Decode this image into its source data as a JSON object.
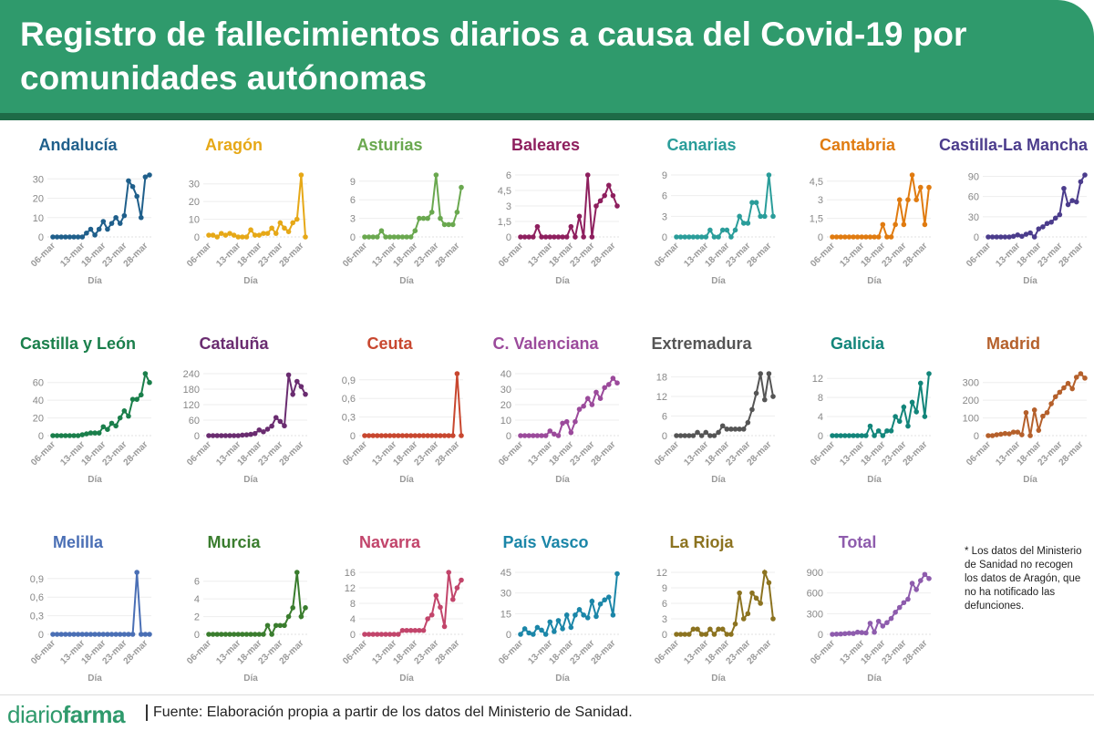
{
  "header": {
    "title": "Registro de fallecimientos diarios a causa del Covid-19 por comunidades autónomas"
  },
  "note": "* Los datos del Ministerio de Sanidad no recogen los datos de Aragón, que no ha notificado las defunciones.",
  "footer": {
    "logo_light": "diario",
    "logo_bold": "farma",
    "source": "Fuente: Elaboración propia a partir de los datos del Ministerio de Sanidad."
  },
  "chart_data": {
    "type": "line",
    "xlabel": "Día",
    "x": [
      "06-mar",
      "07-mar",
      "08-mar",
      "09-mar",
      "10-mar",
      "11-mar",
      "12-mar",
      "13-mar",
      "14-mar",
      "15-mar",
      "16-mar",
      "17-mar",
      "18-mar",
      "19-mar",
      "20-mar",
      "21-mar",
      "22-mar",
      "23-mar",
      "24-mar",
      "25-mar",
      "26-mar",
      "27-mar",
      "28-mar",
      "29-mar"
    ],
    "xticks": [
      "06-mar",
      "13-mar",
      "18-mar",
      "23-mar",
      "28-mar"
    ],
    "panels": [
      {
        "name": "Andalucía",
        "color": "#1f5f8b",
        "yticks": [
          "0",
          "10",
          "20",
          "30"
        ],
        "tickvals": [
          0,
          10,
          20,
          30
        ],
        "values": [
          0,
          0,
          0,
          0,
          0,
          0,
          0,
          0,
          2,
          4,
          1,
          4,
          8,
          4,
          7,
          10,
          7,
          11,
          29,
          26,
          21,
          10,
          31,
          32
        ]
      },
      {
        "name": "Aragón",
        "color": "#e6a817",
        "yticks": [
          "0",
          "10",
          "20",
          "30"
        ],
        "tickvals": [
          0,
          10,
          20,
          30
        ],
        "values": [
          1,
          1,
          0,
          2,
          1,
          2,
          1,
          0,
          0,
          0,
          4,
          1,
          1,
          2,
          2,
          5,
          2,
          8,
          5,
          3,
          8,
          10,
          35,
          0
        ]
      },
      {
        "name": "Asturias",
        "color": "#6aa84f",
        "yticks": [
          "0",
          "3",
          "6",
          "9"
        ],
        "tickvals": [
          0,
          3,
          6,
          9
        ],
        "values": [
          0,
          0,
          0,
          0,
          1,
          0,
          0,
          0,
          0,
          0,
          0,
          0,
          1,
          3,
          3,
          3,
          4,
          10,
          3,
          2,
          2,
          2,
          4,
          8
        ]
      },
      {
        "name": "Baleares",
        "color": "#8e1f5e",
        "yticks": [
          "0",
          "1,5",
          "3",
          "4,5",
          "6"
        ],
        "tickvals": [
          0,
          1.5,
          3,
          4.5,
          6
        ],
        "values": [
          0,
          0,
          0,
          0,
          1,
          0,
          0,
          0,
          0,
          0,
          0,
          0,
          1,
          0,
          2,
          0,
          6,
          0,
          3,
          3.5,
          4,
          5,
          4,
          3
        ]
      },
      {
        "name": "Canarias",
        "color": "#2a9d9a",
        "yticks": [
          "0",
          "3",
          "6",
          "9"
        ],
        "tickvals": [
          0,
          3,
          6,
          9
        ],
        "values": [
          0,
          0,
          0,
          0,
          0,
          0,
          0,
          0,
          1,
          0,
          0,
          1,
          1,
          0,
          1,
          3,
          2,
          2,
          5,
          5,
          3,
          3,
          9,
          3
        ]
      },
      {
        "name": "Cantabria",
        "color": "#e07b10",
        "yticks": [
          "0",
          "1,5",
          "3",
          "4,5"
        ],
        "tickvals": [
          0,
          1.5,
          3,
          4.5
        ],
        "values": [
          0,
          0,
          0,
          0,
          0,
          0,
          0,
          0,
          0,
          0,
          0,
          0,
          1,
          0,
          0,
          1,
          3,
          1,
          3,
          5,
          3,
          4,
          1,
          4
        ]
      },
      {
        "name": "Castilla-La Mancha",
        "color": "#4b3c8c",
        "yticks": [
          "0",
          "30",
          "60",
          "90"
        ],
        "tickvals": [
          0,
          30,
          60,
          90
        ],
        "values": [
          0,
          0,
          0,
          0,
          0,
          0,
          1,
          3,
          1,
          4,
          6,
          0,
          12,
          15,
          20,
          22,
          28,
          33,
          72,
          48,
          54,
          52,
          82,
          92
        ]
      },
      {
        "name": "Castilla y León",
        "color": "#1a7f4b",
        "yticks": [
          "0",
          "20",
          "40",
          "60"
        ],
        "tickvals": [
          0,
          20,
          40,
          60
        ],
        "values": [
          0,
          0,
          0,
          0,
          0,
          0,
          0,
          1,
          2,
          3,
          3,
          3,
          10,
          7,
          14,
          11,
          20,
          28,
          22,
          41,
          41,
          46,
          70,
          60
        ]
      },
      {
        "name": "Cataluña",
        "color": "#6a2c70",
        "yticks": [
          "0",
          "60",
          "120",
          "180",
          "240"
        ],
        "tickvals": [
          0,
          60,
          120,
          180,
          240
        ],
        "values": [
          0,
          0,
          0,
          0,
          0,
          0,
          0,
          0,
          2,
          3,
          5,
          8,
          22,
          15,
          25,
          37,
          70,
          55,
          38,
          235,
          160,
          210,
          190,
          160
        ]
      },
      {
        "name": "Ceuta",
        "color": "#c8472f",
        "yticks": [
          "0",
          "0,3",
          "0,6",
          "0,9"
        ],
        "tickvals": [
          0,
          0.3,
          0.6,
          0.9
        ],
        "values": [
          0,
          0,
          0,
          0,
          0,
          0,
          0,
          0,
          0,
          0,
          0,
          0,
          0,
          0,
          0,
          0,
          0,
          0,
          0,
          0,
          0,
          0,
          1,
          0
        ]
      },
      {
        "name": "C. Valenciana",
        "color": "#9b4a9b",
        "yticks": [
          "0",
          "10",
          "20",
          "30",
          "40"
        ],
        "tickvals": [
          0,
          10,
          20,
          30,
          40
        ],
        "values": [
          0,
          0,
          0,
          0,
          0,
          0,
          0,
          3,
          1,
          0,
          8,
          9,
          2,
          9,
          17,
          19,
          24,
          20,
          28,
          24,
          31,
          33,
          37,
          34
        ]
      },
      {
        "name": "Extremadura",
        "color": "#555555",
        "yticks": [
          "0",
          "6",
          "12",
          "18"
        ],
        "tickvals": [
          0,
          6,
          12,
          18
        ],
        "values": [
          0,
          0,
          0,
          0,
          0,
          1,
          0,
          1,
          0,
          0,
          1,
          3,
          2,
          2,
          2,
          2,
          2,
          4,
          8,
          13,
          19,
          11,
          19,
          12
        ]
      },
      {
        "name": "Galicia",
        "color": "#12857a",
        "yticks": [
          "0",
          "4",
          "8",
          "12"
        ],
        "tickvals": [
          0,
          4,
          8,
          12
        ],
        "values": [
          0,
          0,
          0,
          0,
          0,
          0,
          0,
          0,
          0,
          2,
          0,
          1,
          0,
          1,
          1,
          4,
          3,
          6,
          2,
          7,
          5,
          11,
          4,
          13
        ]
      },
      {
        "name": "Madrid",
        "color": "#b5602b",
        "yticks": [
          "0",
          "100",
          "200",
          "300"
        ],
        "tickvals": [
          0,
          100,
          200,
          300
        ],
        "values": [
          0,
          0,
          5,
          8,
          12,
          10,
          20,
          20,
          5,
          130,
          0,
          145,
          30,
          110,
          130,
          180,
          220,
          245,
          270,
          295,
          265,
          330,
          350,
          325
        ]
      },
      {
        "name": "Melilla",
        "color": "#4a6fb5",
        "yticks": [
          "0",
          "0,3",
          "0,6",
          "0,9"
        ],
        "tickvals": [
          0,
          0.3,
          0.6,
          0.9
        ],
        "values": [
          0,
          0,
          0,
          0,
          0,
          0,
          0,
          0,
          0,
          0,
          0,
          0,
          0,
          0,
          0,
          0,
          0,
          0,
          0,
          0,
          1,
          0,
          0,
          0
        ]
      },
      {
        "name": "Murcia",
        "color": "#3a7d2e",
        "yticks": [
          "0",
          "2",
          "4",
          "6"
        ],
        "tickvals": [
          0,
          2,
          4,
          6
        ],
        "values": [
          0,
          0,
          0,
          0,
          0,
          0,
          0,
          0,
          0,
          0,
          0,
          0,
          0,
          0,
          1,
          0,
          1,
          1,
          1,
          2,
          3,
          7,
          2,
          3
        ]
      },
      {
        "name": "Navarra",
        "color": "#c2456b",
        "yticks": [
          "0",
          "4",
          "8",
          "12",
          "16"
        ],
        "tickvals": [
          0,
          4,
          8,
          12,
          16
        ],
        "values": [
          0,
          0,
          0,
          0,
          0,
          0,
          0,
          0,
          0,
          1,
          1,
          1,
          1,
          1,
          1,
          4,
          5,
          10,
          7,
          2,
          16,
          9,
          12,
          14
        ]
      },
      {
        "name": "País Vasco",
        "color": "#1b86a8",
        "yticks": [
          "0",
          "15",
          "30",
          "45"
        ],
        "tickvals": [
          0,
          15,
          30,
          45
        ],
        "values": [
          0,
          4,
          1,
          0,
          5,
          3,
          0,
          9,
          2,
          10,
          4,
          14,
          5,
          14,
          18,
          14,
          12,
          24,
          13,
          22,
          25,
          27,
          14,
          44
        ]
      },
      {
        "name": "La Rioja",
        "color": "#8c7320",
        "yticks": [
          "0",
          "3",
          "6",
          "9",
          "12"
        ],
        "tickvals": [
          0,
          3,
          6,
          9,
          12
        ],
        "values": [
          0,
          0,
          0,
          0,
          1,
          1,
          0,
          0,
          1,
          0,
          1,
          1,
          0,
          0,
          2,
          8,
          3,
          4,
          8,
          7,
          6,
          12,
          10,
          3
        ]
      },
      {
        "name": "Total",
        "color": "#8e5cad",
        "yticks": [
          "0",
          "300",
          "600",
          "900"
        ],
        "tickvals": [
          0,
          300,
          600,
          900
        ],
        "values": [
          0,
          3,
          5,
          10,
          15,
          12,
          30,
          25,
          20,
          160,
          30,
          190,
          120,
          170,
          230,
          320,
          390,
          460,
          510,
          740,
          650,
          780,
          870,
          810
        ]
      }
    ]
  }
}
